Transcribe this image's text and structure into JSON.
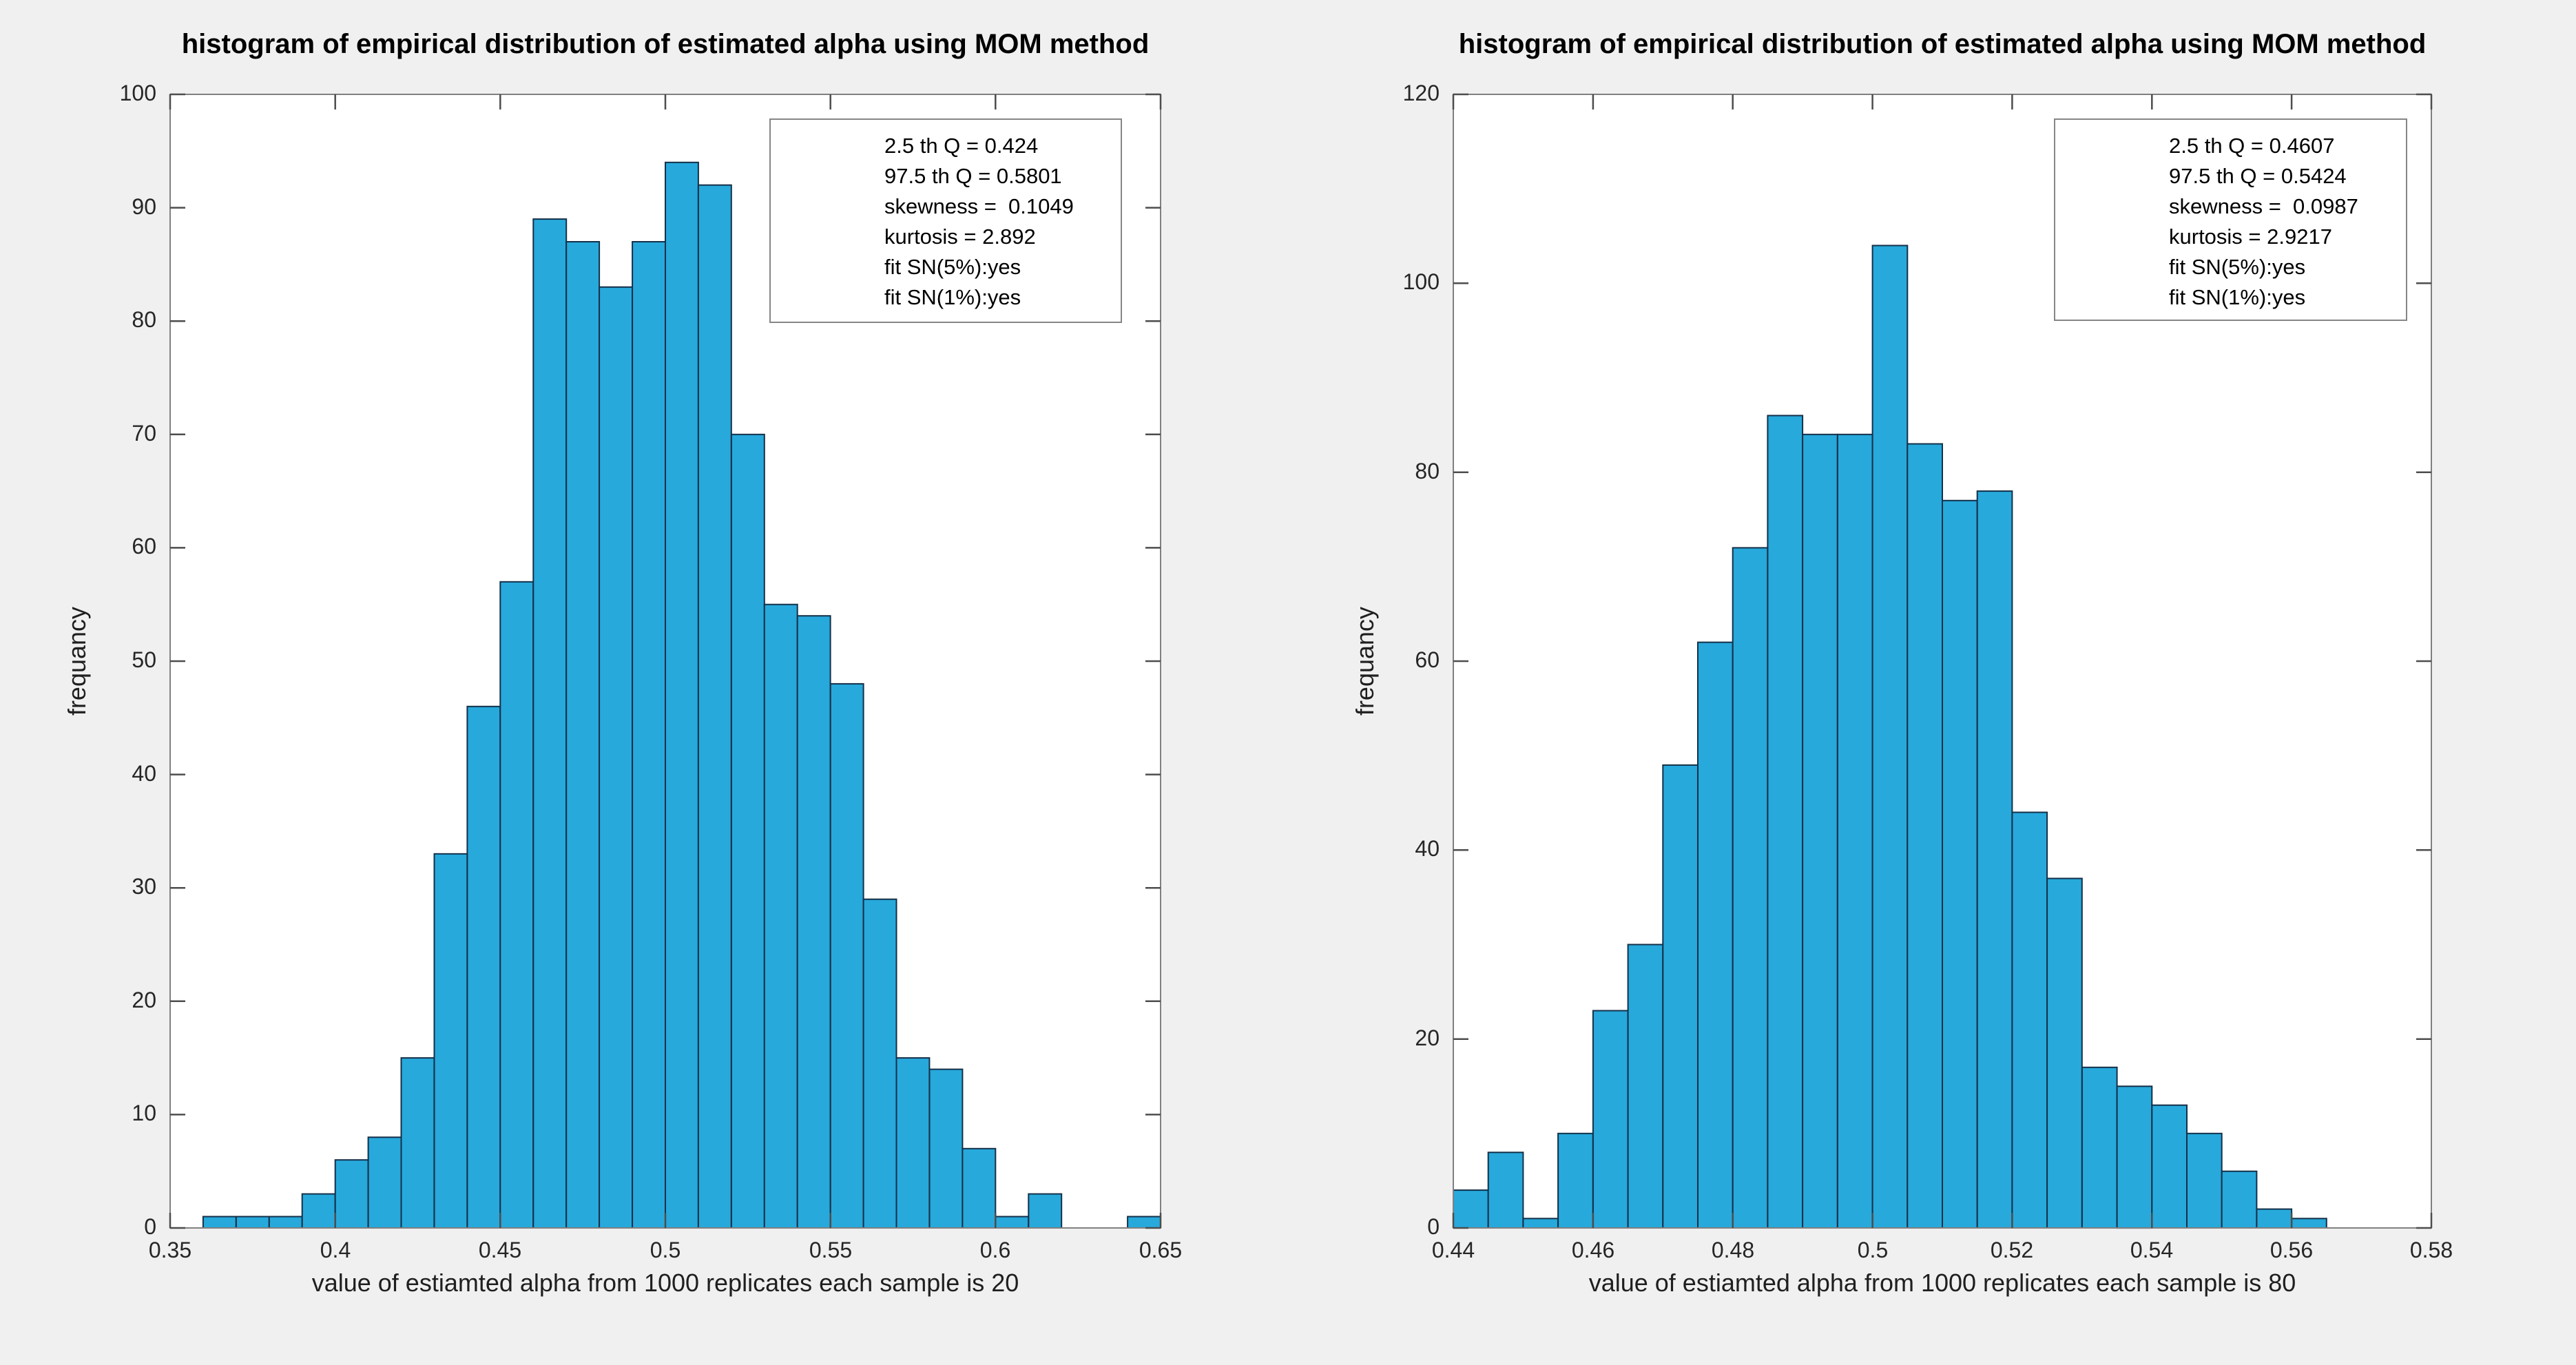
{
  "colors": {
    "figure_background": "#f0f0f0",
    "plot_background": "#ffffff",
    "bar_face": "#27a9dc",
    "bar_edge": "#143048",
    "axes_box": "#808080",
    "tick_mark": "#4d4d4d",
    "tick_text": "#262626",
    "label_text": "#1f1f1f"
  },
  "chart_data": [
    {
      "type": "bar",
      "subtype": "histogram",
      "title": "histogram of empirical distribution of estimated alpha using MOM method",
      "xlabel": "value of estiamted alpha from 1000 replicates each sample is 20",
      "ylabel": "frequancy",
      "n_total": 1000,
      "bin_start": 0.36,
      "bin_width": 0.01,
      "counts": [
        1,
        1,
        1,
        3,
        6,
        8,
        15,
        33,
        46,
        57,
        89,
        87,
        83,
        87,
        94,
        92,
        70,
        55,
        54,
        48,
        29,
        15,
        14,
        7,
        1,
        3,
        0,
        0,
        1
      ],
      "xlim": [
        0.35,
        0.65
      ],
      "ylim": [
        0,
        100
      ],
      "xtick_values": [
        0.35,
        0.4,
        0.45,
        0.5,
        0.55,
        0.6,
        0.65
      ],
      "xtick_labels": [
        "0.35",
        "0.4",
        "0.45",
        "0.5",
        "0.55",
        "0.6",
        "0.65"
      ],
      "ytick_values": [
        0,
        10,
        20,
        30,
        40,
        50,
        60,
        70,
        80,
        90,
        100
      ],
      "grid": false,
      "legend_position": "northeast",
      "legend_lines": [
        "2.5 th Q = 0.424",
        "97.5 th Q = 0.5801",
        "skewness =  0.1049",
        "kurtosis = 2.892",
        "fit SN(5%):yes",
        "fit SN(1%):yes"
      ]
    },
    {
      "type": "bar",
      "subtype": "histogram",
      "title": "histogram of empirical distribution of estimated alpha using MOM method",
      "xlabel": "value of estiamted alpha from 1000 replicates each sample is 80",
      "ylabel": "frequancy",
      "n_total": 1000,
      "bin_start": 0.44,
      "bin_width": 0.005,
      "counts": [
        4,
        8,
        1,
        10,
        23,
        30,
        49,
        62,
        72,
        86,
        84,
        84,
        104,
        83,
        77,
        78,
        44,
        37,
        17,
        15,
        13,
        10,
        6,
        2,
        1
      ],
      "xlim": [
        0.44,
        0.58
      ],
      "ylim": [
        0,
        120
      ],
      "xtick_values": [
        0.44,
        0.46,
        0.48,
        0.5,
        0.52,
        0.54,
        0.56,
        0.58
      ],
      "xtick_labels": [
        "0.44",
        "0.46",
        "0.48",
        "0.5",
        "0.52",
        "0.54",
        "0.56",
        "0.58"
      ],
      "ytick_values": [
        0,
        20,
        40,
        60,
        80,
        100,
        120
      ],
      "grid": false,
      "legend_position": "northeast",
      "legend_lines": [
        "2.5 th Q = 0.4607",
        "97.5 th Q = 0.5424",
        "skewness =  0.0987",
        "kurtosis = 2.9217",
        "fit SN(5%):yes",
        "fit SN(1%):yes"
      ]
    }
  ]
}
